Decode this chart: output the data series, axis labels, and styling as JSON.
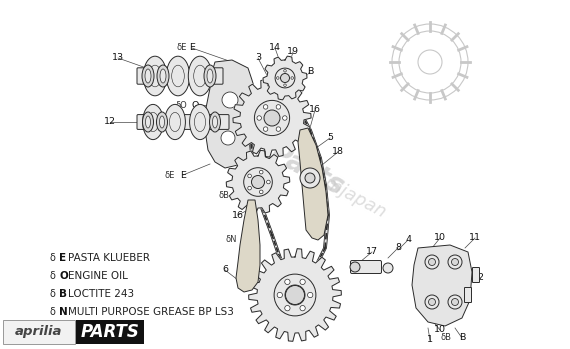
{
  "bg_color": "#ffffff",
  "diagram_color": "#2a2a2a",
  "light_fill": "#e8e8e8",
  "mid_fill": "#d8d8d8",
  "dark_fill": "#c0c0c0",
  "watermark_color": "#c8c8c8",
  "legend_items": [
    {
      "symbol": "δE",
      "letter": "E",
      "text": "  PASTA KLUEBER"
    },
    {
      "symbol": "δO",
      "letter": "O",
      "text": "  ENGINE OIL"
    },
    {
      "symbol": "δB",
      "letter": "B",
      "text": "  LOCTITE 243"
    },
    {
      "symbol": "δN",
      "letter": "N",
      "text": "  MULTI PURPOSE GREASE BP LS3"
    }
  ],
  "aprilia_text": "aprilia",
  "parts_text": "PARTS",
  "parts_bg": "#111111",
  "scale": [
    0,
    570,
    0,
    349
  ]
}
